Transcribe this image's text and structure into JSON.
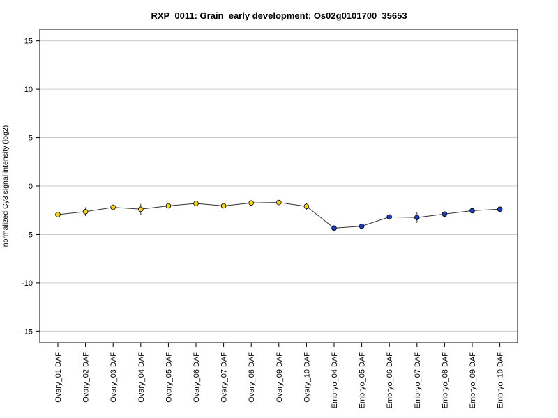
{
  "chart_data": {
    "type": "line",
    "title": "RXP_0011: Grain_early development; Os02g0101700_35653",
    "xlabel": "",
    "ylabel": "normalized Cy3 signal intensity (log2)",
    "ylim": [
      -16.2,
      16.2
    ],
    "yticks": [
      -15,
      -10,
      -5,
      0,
      5,
      10,
      15
    ],
    "grid": true,
    "categories": [
      "Ovary_01 DAF",
      "Ovary_02 DAF",
      "Ovary_03 DAF",
      "Ovary_04 DAF",
      "Ovary_05 DAF",
      "Ovary_06 DAF",
      "Ovary_07 DAF",
      "Ovary_08 DAF",
      "Ovary_09 DAF",
      "Ovary_10 DAF",
      "Embryo_04 DAF",
      "Embryo_05 DAF",
      "Embryo_06 DAF",
      "Embryo_07 DAF",
      "Embryo_08 DAF",
      "Embryo_09 DAF",
      "Embryo_10 DAF"
    ],
    "values": [
      -2.95,
      -2.65,
      -2.2,
      -2.4,
      -2.05,
      -1.8,
      -2.05,
      -1.75,
      -1.7,
      -2.1,
      -4.35,
      -4.15,
      -3.2,
      -3.25,
      -2.9,
      -2.55,
      -2.4
    ],
    "errors": [
      0.1,
      0.45,
      0.15,
      0.55,
      0.15,
      0.1,
      0.1,
      0.25,
      0.15,
      0.35,
      0.3,
      0.15,
      0.2,
      0.55,
      0.1,
      0.1,
      0.1
    ],
    "point_colors": [
      "#f5d415",
      "#f5d415",
      "#f5d415",
      "#f5d415",
      "#f5d415",
      "#f5d415",
      "#f5d415",
      "#f5d415",
      "#f5d415",
      "#f5d415",
      "#1a3fc7",
      "#1a3fc7",
      "#1a3fc7",
      "#1a3fc7",
      "#1a3fc7",
      "#1a3fc7",
      "#1a3fc7"
    ],
    "colors": {
      "ovary": "#f5d415",
      "embryo": "#1a3fc7",
      "line": "#333333",
      "grid": "#cccccc"
    }
  }
}
